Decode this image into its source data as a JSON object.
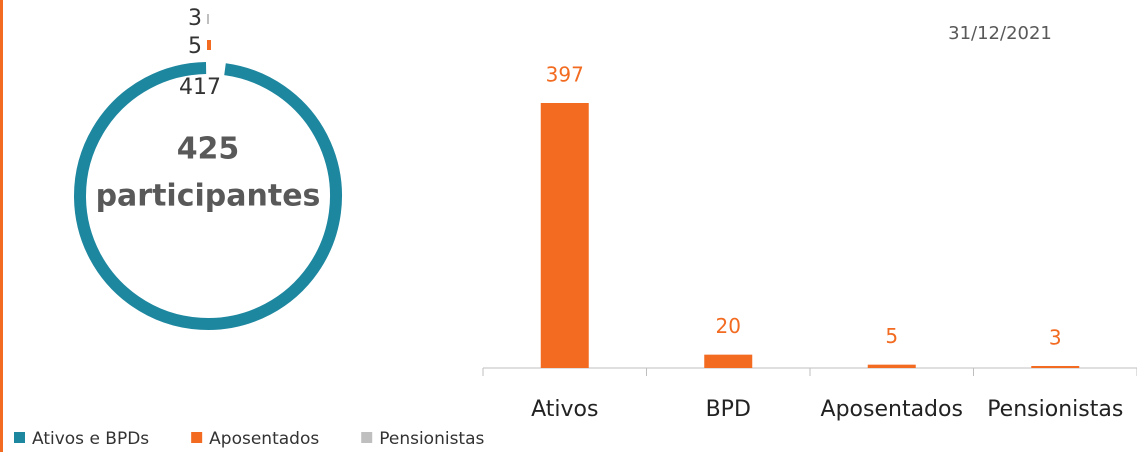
{
  "chart_data": [
    {
      "type": "donut",
      "total": 425,
      "center_label": "participantes",
      "categories": [
        "Ativos e BPDs",
        "Aposentados",
        "Pensionistas"
      ],
      "values": [
        417,
        5,
        3
      ],
      "colors": [
        "#1e87a0",
        "#f26b21",
        "#bfbfbf"
      ],
      "legend": "bottom"
    },
    {
      "type": "bar",
      "title": "31/12/2021",
      "categories": [
        "Ativos",
        "BPD",
        "Aposentados",
        "Pensionistas"
      ],
      "values": [
        397,
        20,
        5,
        3
      ],
      "color": "#f26b21"
    }
  ]
}
